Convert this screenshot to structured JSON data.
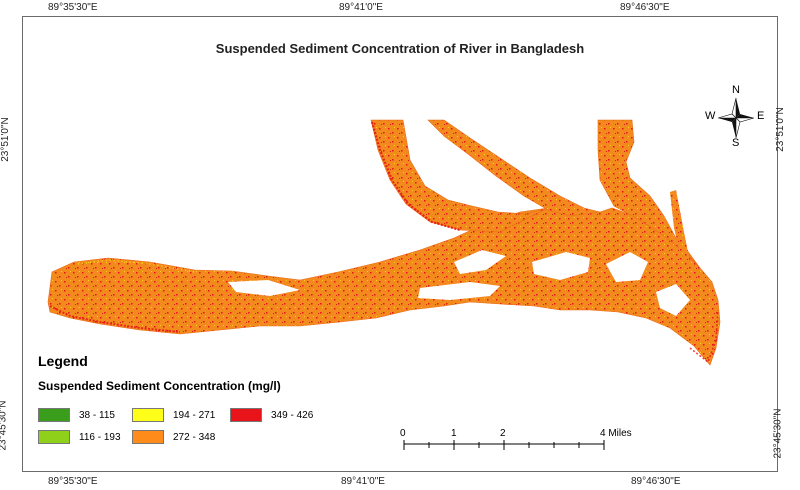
{
  "title": "Suspended Sediment Concentration of River in Bangladesh",
  "coordinates": {
    "top": [
      "89°35'30\"E",
      "89°41'0\"E",
      "89°46'30\"E"
    ],
    "bottom": [
      "89°35'30\"E",
      "89°41'0\"E",
      "89°46'30\"E"
    ],
    "left": [
      "23°51'0\"N",
      "23°45'30\"N"
    ],
    "right": [
      "23°51'0\"N",
      "23°45'30\"N"
    ]
  },
  "legend": {
    "title": "Legend",
    "subtitle": "Suspended Sediment Concentration (mg/l)",
    "items": [
      {
        "label": "38 - 115",
        "color": "#3a9e1c"
      },
      {
        "label": "116 - 193",
        "color": "#8fd11a"
      },
      {
        "label": "194 - 271",
        "color": "#ffff1a"
      },
      {
        "label": "272 - 348",
        "color": "#ff8c1a"
      },
      {
        "label": "349 - 426",
        "color": "#e8141a"
      }
    ]
  },
  "scale_bar": {
    "labels": [
      "0",
      "1",
      "2",
      "4 Miles"
    ]
  },
  "north_arrow": {
    "n": "N",
    "s": "S",
    "e": "E",
    "w": "W"
  },
  "colors": {
    "river": "#f28a1e",
    "high": "#e8141a",
    "yellow": "#ffef1a"
  }
}
